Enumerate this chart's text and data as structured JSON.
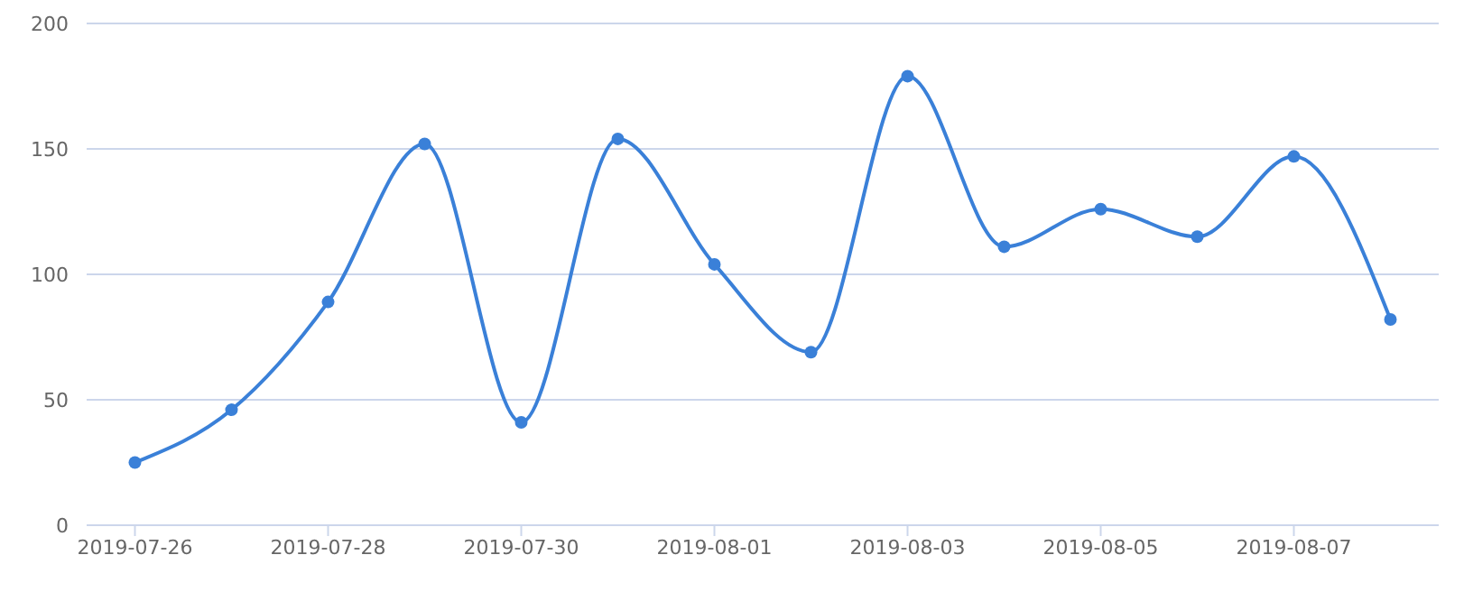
{
  "chart_data": {
    "type": "line",
    "x": [
      "2019-07-26",
      "2019-07-27",
      "2019-07-28",
      "2019-07-29",
      "2019-07-30",
      "2019-07-31",
      "2019-08-01",
      "2019-08-02",
      "2019-08-03",
      "2019-08-04",
      "2019-08-05",
      "2019-08-06",
      "2019-08-07",
      "2019-08-08"
    ],
    "series": [
      {
        "color": "#3a80d8",
        "values": [
          25,
          46,
          89,
          152,
          41,
          154,
          104,
          69,
          179,
          111,
          126,
          115,
          147,
          82
        ]
      }
    ],
    "xlim": [
      "2019-07-25T12:00",
      "2019-08-08T12:00"
    ],
    "xticks": [
      "2019-07-26",
      "2019-07-28",
      "2019-07-30",
      "2019-08-01",
      "2019-08-03",
      "2019-08-05",
      "2019-08-07"
    ],
    "ylim": [
      0,
      200
    ],
    "yticks": [
      0,
      50,
      100,
      150,
      200
    ],
    "grid": "y",
    "marker": "circle",
    "line_style": "solid"
  }
}
